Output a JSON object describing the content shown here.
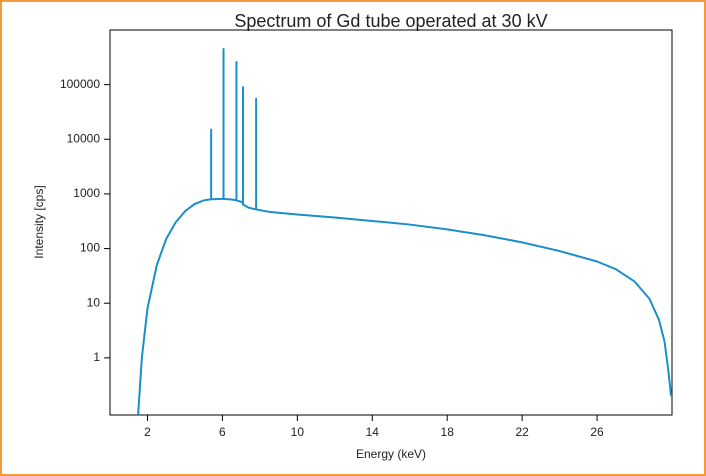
{
  "chart_data": {
    "type": "line",
    "title": "Spectrum of Gd tube operated at 30 kV",
    "x_label": "Energy (keV)",
    "y_label": "Intensity [cps]",
    "log_y": true,
    "xlim": [
      0,
      30
    ],
    "xticks": [
      2,
      6,
      10,
      14,
      18,
      22,
      26
    ],
    "ylim": [
      0.09,
      1000000
    ],
    "yticks": [
      1,
      10,
      100,
      1000,
      10000,
      100000
    ],
    "series": [
      {
        "name": "Gd tube spectrum",
        "color": "#1a8fc9",
        "x": [
          1.5,
          1.7,
          2,
          2.5,
          3,
          3.5,
          4,
          4.5,
          5,
          5.4,
          5.4,
          5.4,
          6,
          6.06,
          6.06,
          6.06,
          6.5,
          6.75,
          6.75,
          6.75,
          7.1,
          7.1,
          7.1,
          7.4,
          7.8,
          7.8,
          7.8,
          8.5,
          10,
          12,
          14,
          16,
          18,
          20,
          22,
          24,
          26,
          27,
          28,
          28.8,
          29.3,
          29.6,
          29.8,
          29.95
        ],
        "values": [
          0.09,
          1,
          8,
          50,
          150,
          300,
          480,
          650,
          760,
          800,
          15000,
          800,
          810,
          810,
          450000,
          810,
          790,
          760,
          260000,
          760,
          700,
          90000,
          640,
          560,
          520,
          55000,
          520,
          470,
          420,
          370,
          320,
          275,
          225,
          175,
          130,
          90,
          58,
          42,
          25,
          12,
          5,
          2,
          0.6,
          0.2
        ]
      }
    ]
  }
}
